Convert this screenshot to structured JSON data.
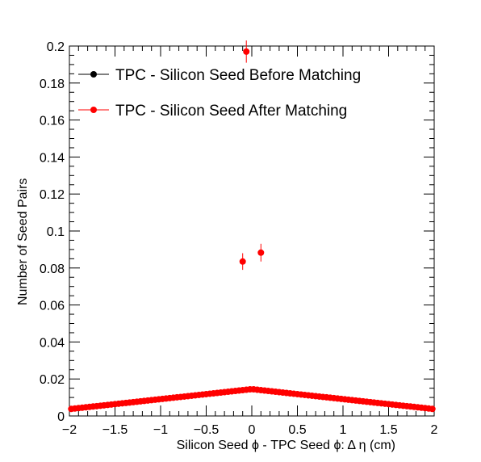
{
  "chart_data": {
    "type": "scatter",
    "title": "",
    "xlabel": "Silicon Seed    ϕ - TPC Seed    ϕ:   Δ    η (cm)",
    "ylabel": "Number of Seed Pairs",
    "xlim": [
      -2,
      2
    ],
    "ylim": [
      0,
      0.2
    ],
    "x_ticks": [
      -2,
      -1.5,
      -1,
      -0.5,
      0,
      0.5,
      1,
      1.5,
      2
    ],
    "x_tick_labels": [
      "−2",
      "−1.5",
      "−1",
      "−0.5",
      "0",
      "0.5",
      "1",
      "1.5",
      "2"
    ],
    "y_ticks": [
      0,
      0.02,
      0.04,
      0.06,
      0.08,
      0.1,
      0.12,
      0.14,
      0.16,
      0.18,
      0.2
    ],
    "y_tick_labels": [
      "0",
      "0.02",
      "0.04",
      "0.06",
      "0.08",
      "0.1",
      "0.12",
      "0.14",
      "0.16",
      "0.18",
      "0.2"
    ],
    "grid": false,
    "legend_position": "top-left",
    "series": [
      {
        "name": "TPC - Silicon Seed Before Matching",
        "color": "#000000",
        "marker": "circle",
        "points": []
      },
      {
        "name": "TPC - Silicon Seed After Matching",
        "color": "#ff0000",
        "marker": "circle",
        "baseline": {
          "x_min": -1.98,
          "x_max": 1.98,
          "step": 0.04,
          "y_edge": 0.0037,
          "y_center": 0.0145,
          "shape": "linear"
        },
        "points": [
          {
            "x": -0.1,
            "y": 0.0835,
            "err": 0.0045
          },
          {
            "x": 0.1,
            "y": 0.0883,
            "err": 0.0048
          },
          {
            "x": -0.06,
            "y": 0.197,
            "err": 0.006
          }
        ]
      }
    ]
  }
}
